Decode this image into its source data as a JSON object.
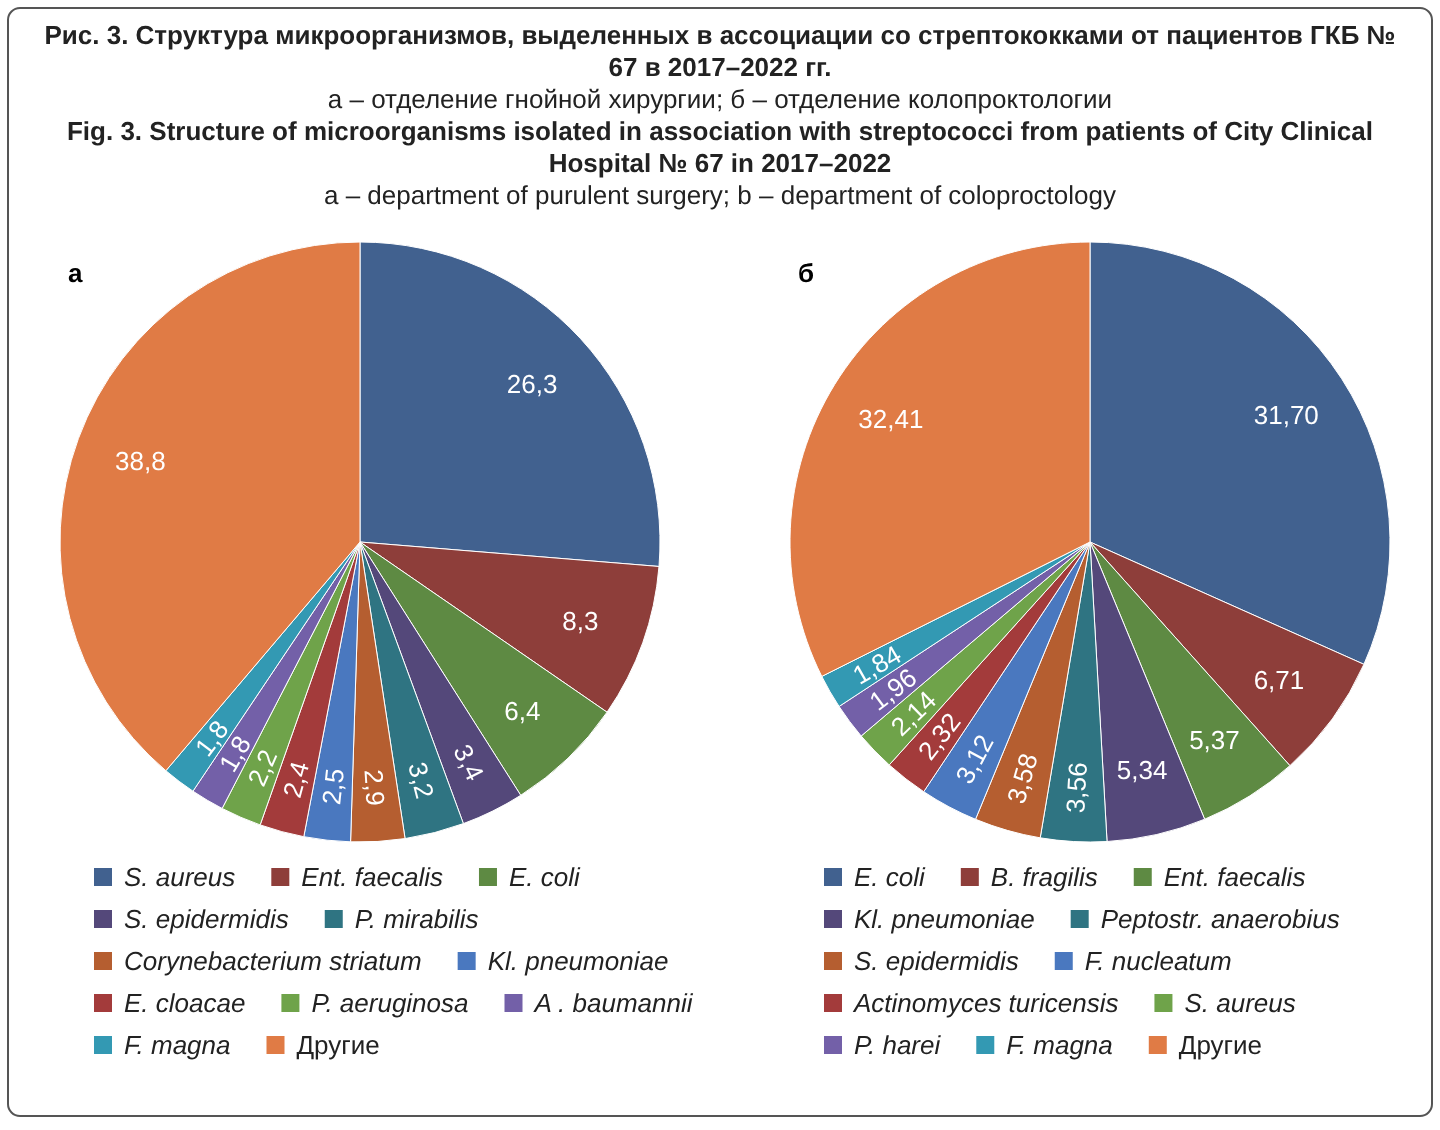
{
  "chart_data": [
    {
      "type": "pie",
      "title": "а",
      "annotations": [
        "Рис. 3. Структура микроорганизмов, выделенных в ассоциации со стрептококками от пациентов ГКБ № 67 в 2017–2022 гг.",
        "а – отделение гнойной хирургии; б – отделение колопроктологии",
        "Fig. 3. Structure of microorganisms isolated in association with streptococci from patients of City Clinical Hospital № 67 in 2017–2022",
        "a – department of purulent surgery; b – department of coloproctology"
      ],
      "categories": [
        "S. aureus",
        "Ent. faecalis",
        "E. coli",
        "S. epidermidis",
        "P. mirabilis",
        "Corynebacterium striatum",
        "Kl. pneumoniae",
        "E. cloacae",
        "P. aeruginosa",
        "A . baumannii",
        "F. magna",
        "Другие"
      ],
      "values": [
        26.3,
        8.3,
        6.4,
        3.4,
        3.2,
        2.9,
        2.5,
        2.4,
        2.2,
        1.8,
        1.8,
        38.8
      ],
      "value_labels": [
        "26,3",
        "8,3",
        "6,4",
        "3,4",
        "3,2",
        "2,9",
        "2,5",
        "2,4",
        "2,2",
        "1,8",
        "1,8",
        "38,8"
      ],
      "colors": [
        "#41618f",
        "#8e3e3a",
        "#5e8a43",
        "#54487a",
        "#2f7482",
        "#b55e30",
        "#4a78bf",
        "#a33b3b",
        "#6fa34a",
        "#7360a8",
        "#3399b3",
        "#e07b45"
      ],
      "legend": "bottom"
    },
    {
      "type": "pie",
      "title": "б",
      "categories": [
        "E. coli",
        "B. fragilis",
        "Ent. faecalis",
        "Kl. pneumoniae",
        "Peptostr. anaerobius",
        "S. epidermidis",
        "F. nucleatum",
        "Actinomyces  turicensis",
        "S. aureus",
        "P. harei",
        "F. magna",
        "Другие"
      ],
      "values": [
        31.7,
        6.71,
        5.37,
        5.34,
        3.56,
        3.58,
        3.12,
        2.32,
        2.14,
        1.96,
        1.84,
        32.41
      ],
      "value_labels": [
        "31,70",
        "6,71",
        "5,37",
        "5,34",
        "3,56",
        "3,58",
        "3,12",
        "2,32",
        "2,14",
        "1,96",
        "1,84",
        "32,41"
      ],
      "colors": [
        "#41618f",
        "#8e3e3a",
        "#5e8a43",
        "#54487a",
        "#2f7482",
        "#b55e30",
        "#4a78bf",
        "#a33b3b",
        "#6fa34a",
        "#7360a8",
        "#3399b3",
        "#e07b45"
      ],
      "legend": "bottom"
    }
  ]
}
